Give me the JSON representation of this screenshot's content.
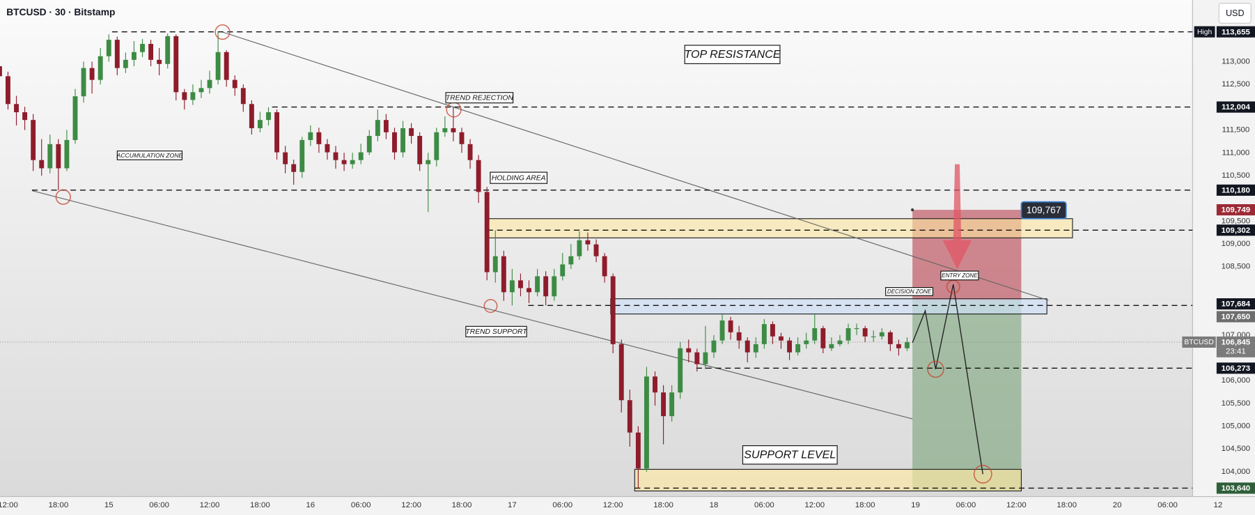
{
  "chart_data": {
    "type": "candlestick",
    "title": "BTCUSD · 30 · Bitstamp",
    "currency": "USD",
    "x": [
      -1,
      0,
      1,
      2,
      3,
      4,
      5,
      6,
      7,
      8,
      9,
      10,
      11,
      12,
      13,
      14,
      15,
      16,
      17,
      18,
      19,
      20,
      21,
      22,
      23,
      24,
      25,
      26,
      27,
      28,
      29,
      30,
      31,
      32,
      33,
      34,
      35,
      36,
      37,
      38,
      39,
      40,
      41,
      42,
      43,
      44,
      45,
      46,
      47,
      48,
      49,
      50,
      51,
      52,
      53,
      54,
      55,
      56,
      57,
      58,
      59,
      60,
      61,
      62,
      63,
      64,
      65,
      66,
      67,
      68,
      69,
      70,
      71,
      72,
      73,
      74,
      75,
      76,
      77,
      78,
      79,
      80,
      81,
      82,
      83,
      84,
      85,
      86,
      87,
      88,
      89,
      90,
      91,
      92,
      93,
      94,
      95,
      96,
      97,
      98,
      99,
      100,
      101,
      102,
      103,
      104,
      105,
      106,
      107
    ],
    "open": [
      112900,
      112680,
      112070,
      111890,
      111720,
      110840,
      110660,
      111190,
      110660,
      111280,
      112240,
      112860,
      112600,
      113120,
      113480,
      112860,
      113040,
      113210,
      113390,
      113040,
      112950,
      113560,
      112330,
      112160,
      112330,
      112420,
      112600,
      113210,
      112600,
      112420,
      112070,
      111540,
      111720,
      111890,
      111010,
      110750,
      110580,
      111280,
      111450,
      111190,
      111010,
      110840,
      110750,
      110840,
      111010,
      111370,
      111720,
      111450,
      111010,
      111540,
      111370,
      110750,
      110840,
      111450,
      111540,
      111450,
      111190,
      110840,
      110140,
      108380,
      108730,
      107940,
      108200,
      108030,
      107940,
      108290,
      107850,
      108290,
      108550,
      108730,
      109080,
      108990,
      108730,
      108290,
      106800,
      105570,
      104860,
      104070,
      106090,
      105740,
      105220,
      105740,
      106710,
      106620,
      106360,
      106620,
      106880,
      107320,
      107060,
      106880,
      106620,
      106800,
      107240,
      106970,
      106880,
      106620,
      106800,
      106880,
      107150,
      106710,
      106800,
      106880,
      107150,
      107150,
      106970,
      106970,
      107060,
      106800,
      106710
    ],
    "high": [
      113050,
      112780,
      112250,
      112010,
      111850,
      111300,
      111400,
      111300,
      111500,
      112400,
      113000,
      113000,
      113300,
      113600,
      113550,
      113200,
      113450,
      113500,
      113480,
      113300,
      113620,
      113600,
      112400,
      112500,
      112600,
      112800,
      113655,
      113250,
      112700,
      112500,
      112150,
      111900,
      112000,
      111950,
      111150,
      110850,
      111350,
      111600,
      111550,
      111300,
      111150,
      111000,
      111000,
      111200,
      111500,
      111950,
      111850,
      111550,
      111700,
      111650,
      111450,
      111000,
      111550,
      111800,
      112000,
      111550,
      111300,
      110950,
      110250,
      109300,
      108850,
      108450,
      108350,
      108200,
      108450,
      108400,
      108450,
      108800,
      109000,
      109280,
      109250,
      109100,
      108800,
      108350,
      106900,
      105800,
      105000,
      106300,
      106200,
      105900,
      105900,
      106850,
      106900,
      106700,
      107200,
      107000,
      107450,
      107400,
      107200,
      106950,
      106950,
      107350,
      107300,
      107050,
      106950,
      106950,
      107050,
      107450,
      107200,
      106950,
      107000,
      107250,
      107250,
      107200,
      107100,
      107150,
      107100,
      106900,
      106950
    ],
    "low": [
      112550,
      111950,
      111600,
      111500,
      110600,
      110500,
      110550,
      110180,
      110600,
      111200,
      112100,
      112300,
      112500,
      113000,
      112700,
      112750,
      112900,
      113100,
      112900,
      112700,
      112850,
      112150,
      111950,
      112050,
      112200,
      112300,
      112500,
      112450,
      112250,
      111900,
      111400,
      111450,
      111600,
      110850,
      110550,
      110300,
      110450,
      111150,
      111000,
      110850,
      110650,
      110600,
      110650,
      110750,
      110950,
      111250,
      111300,
      110850,
      110900,
      111200,
      110600,
      109700,
      110700,
      111350,
      111250,
      111000,
      110650,
      109900,
      108200,
      108150,
      107750,
      107650,
      107850,
      107700,
      107850,
      107650,
      107750,
      108200,
      108450,
      108650,
      108850,
      108600,
      108150,
      106600,
      105300,
      104550,
      103640,
      104000,
      105450,
      104600,
      105100,
      105600,
      106400,
      106200,
      106250,
      106500,
      106800,
      106900,
      106700,
      106400,
      106500,
      106700,
      106800,
      106700,
      106450,
      106550,
      106700,
      106800,
      106600,
      106650,
      106750,
      106800,
      107000,
      106850,
      106850,
      106900,
      106650,
      106550,
      106650
    ],
    "close": [
      112680,
      112070,
      111890,
      111720,
      110840,
      110660,
      111190,
      110660,
      111280,
      112240,
      112860,
      112600,
      113120,
      113480,
      112860,
      113040,
      113210,
      113390,
      113040,
      112950,
      113560,
      112330,
      112160,
      112330,
      112420,
      112600,
      113210,
      112600,
      112420,
      112070,
      111540,
      111720,
      111890,
      111010,
      110750,
      110580,
      111280,
      111450,
      111190,
      111010,
      110840,
      110750,
      110840,
      111010,
      111370,
      111720,
      111450,
      111010,
      111540,
      111370,
      110750,
      110840,
      111450,
      111540,
      111450,
      111190,
      110840,
      110140,
      108380,
      108730,
      107940,
      108200,
      108030,
      107940,
      108290,
      107850,
      108290,
      108550,
      108730,
      109080,
      108990,
      108730,
      108290,
      106800,
      105570,
      104860,
      104070,
      106090,
      105740,
      105220,
      105740,
      106710,
      106620,
      106360,
      106620,
      106880,
      107320,
      107060,
      106880,
      106620,
      106800,
      107240,
      106970,
      106880,
      106620,
      106800,
      106880,
      107150,
      106710,
      106800,
      106880,
      107150,
      107150,
      106970,
      106970,
      107060,
      106800,
      106710,
      106845
    ],
    "up_color": "#3d8b44",
    "down_color": "#8e1c2b",
    "xlim": [
      -0.95,
      148.4
    ],
    "xticks": [
      {
        "value": 0,
        "label": "12:00"
      },
      {
        "value": 6,
        "label": "18:00"
      },
      {
        "value": 12,
        "label": "15"
      },
      {
        "value": 18,
        "label": "06:00"
      },
      {
        "value": 24,
        "label": "12:00"
      },
      {
        "value": 30,
        "label": "18:00"
      },
      {
        "value": 36,
        "label": "16"
      },
      {
        "value": 42,
        "label": "06:00"
      },
      {
        "value": 48,
        "label": "12:00"
      },
      {
        "value": 54,
        "label": "18:00"
      },
      {
        "value": 60,
        "label": "17"
      },
      {
        "value": 66,
        "label": "06:00"
      },
      {
        "value": 72,
        "label": "12:00"
      },
      {
        "value": 78,
        "label": "18:00"
      },
      {
        "value": 84,
        "label": "18"
      },
      {
        "value": 90,
        "label": "06:00"
      },
      {
        "value": 96,
        "label": "12:00"
      },
      {
        "value": 102,
        "label": "18:00"
      },
      {
        "value": 108,
        "label": "19"
      },
      {
        "value": 114,
        "label": "06:00"
      },
      {
        "value": 120,
        "label": "12:00"
      },
      {
        "value": 126,
        "label": "18:00"
      },
      {
        "value": 132,
        "label": "20"
      },
      {
        "value": 138,
        "label": "06:00"
      },
      {
        "value": 144,
        "label": "12"
      }
    ],
    "ylim": [
      103455,
      114353
    ],
    "yticks": [
      {
        "value": 104000,
        "label": "104,000"
      },
      {
        "value": 104500,
        "label": "104,500"
      },
      {
        "value": 105000,
        "label": "105,000"
      },
      {
        "value": 105500,
        "label": "105,500"
      },
      {
        "value": 106000,
        "label": "106,000"
      },
      {
        "value": 107000,
        "label": "107,000"
      },
      {
        "value": 108500,
        "label": "108,500"
      },
      {
        "value": 109000,
        "label": "109,000"
      },
      {
        "value": 109500,
        "label": "109,500"
      },
      {
        "value": 110500,
        "label": "110,500"
      },
      {
        "value": 111000,
        "label": "111,000"
      },
      {
        "value": 111500,
        "label": "111,500"
      },
      {
        "value": 112500,
        "label": "112,500"
      },
      {
        "value": 113000,
        "label": "113,000"
      }
    ],
    "price_labels": [
      {
        "value": 113655,
        "label": "113,655",
        "tag": "High",
        "color": "#131722"
      },
      {
        "value": 112004,
        "label": "112,004",
        "color": "#131722"
      },
      {
        "value": 110180,
        "label": "110,180",
        "color": "#131722"
      },
      {
        "value": 109749,
        "label": "109,749",
        "color": "#9c2a35"
      },
      {
        "value": 109302,
        "label": "109,302",
        "color": "#131722"
      },
      {
        "value": 107684,
        "label": "107,684",
        "color": "#131722"
      },
      {
        "value": 107650,
        "label": "107,650",
        "color": "#6e6e6e"
      },
      {
        "value": 106273,
        "label": "106,273",
        "color": "#131722"
      },
      {
        "value": 103640,
        "label": "103,640",
        "color": "#2f5f3a"
      }
    ],
    "last_price": {
      "symbol": "BTCUSD",
      "value": 106845,
      "label": "106,845",
      "countdown": "23:41",
      "color": "#7b7b7b"
    },
    "annotations": [
      "TOP RESISTANCE",
      "TREND REJECTION",
      "ACCUMULATION ZONE",
      "HOLDING AREA",
      "TREND SUPPORT",
      "DECISION ZONE",
      "ENTRY ZONE",
      "SUPPORT LEVEL"
    ],
    "position_label": "109,767"
  }
}
